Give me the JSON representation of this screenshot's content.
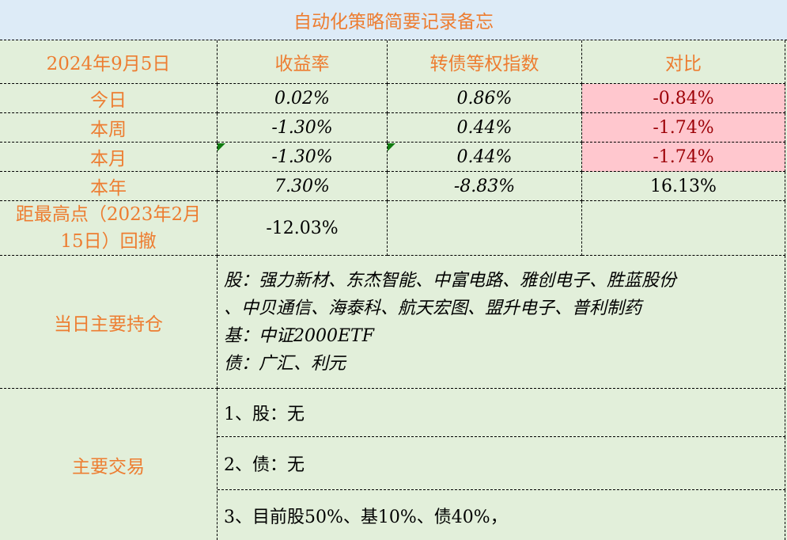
{
  "title": "自动化策略简要记录备忘",
  "header": {
    "date": "2024年9月5日",
    "col1": "收益率",
    "col2": "转债等权指数",
    "col3": "对比"
  },
  "rows": [
    {
      "label": "今日",
      "ret": "0.02%",
      "index": "0.86%",
      "diff": "-0.84%"
    },
    {
      "label": "本周",
      "ret": "-1.30%",
      "index": "0.44%",
      "diff": "-1.74%"
    },
    {
      "label": "本月",
      "ret": "-1.30%",
      "index": "0.44%",
      "diff": "-1.74%"
    },
    {
      "label": "本年",
      "ret": "7.30%",
      "index": "-8.83%",
      "diff": "16.13%"
    }
  ],
  "drawdown": {
    "label": "距最高点（2023年2月15日）回撤",
    "value": "-12.03%"
  },
  "holdings": {
    "label": "当日主要持仓",
    "lines": [
      "股：强力新材、东杰智能、中富电路、雅创电子、胜蓝股份",
      "、中贝通信、海泰科、航天宏图、盟升电子、普利制药",
      "基：中证2000ETF",
      "债：广汇、利元"
    ]
  },
  "trades": {
    "label": "主要交易",
    "items": [
      "1、股：无",
      "2、债：无",
      "3、目前股50%、基10%、债40%，"
    ]
  },
  "colors": {
    "background": "#e2efda",
    "title_bg": "#ddebf7",
    "accent": "#ed7d31",
    "negative_bg": "#ffc7ce",
    "negative_text": "#9c0006"
  }
}
